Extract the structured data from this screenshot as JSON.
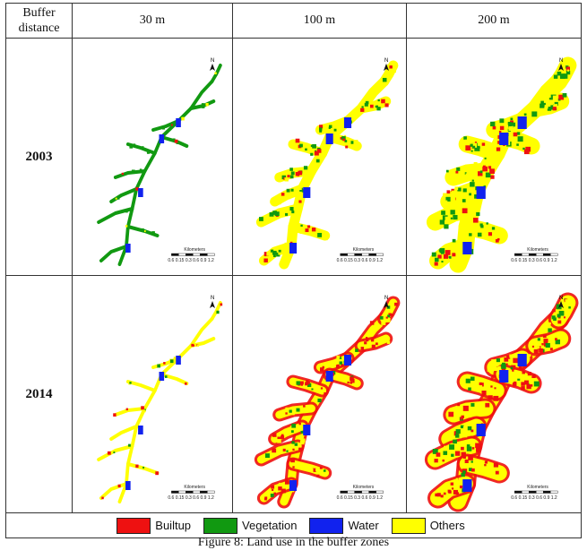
{
  "table": {
    "header": {
      "first_line1": "Buffer",
      "first_line2": "distance",
      "columns": [
        "30 m",
        "100 m",
        "200 m"
      ]
    },
    "rows": [
      {
        "year": "2003"
      },
      {
        "year": "2014"
      }
    ]
  },
  "map_labels": {
    "north": "N",
    "scale_unit": "Kilometers",
    "scale_ticks": "0.6 0.15 0.3 0.6 0.9 1.2"
  },
  "legend": [
    {
      "label": "Builtup",
      "color": "#ee1111"
    },
    {
      "label": "Vegetation",
      "color": "#119911"
    },
    {
      "label": "Water",
      "color": "#1122ee"
    },
    {
      "label": "Others",
      "color": "#ffff00"
    }
  ],
  "caption": "Figure 8: Land use in the buffer zones"
}
